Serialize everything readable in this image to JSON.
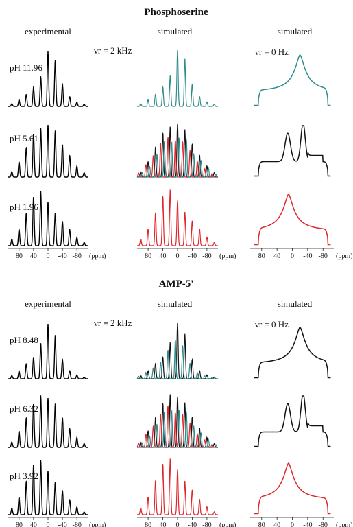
{
  "figure": {
    "colors": {
      "experimental": "#000000",
      "teal": "#2e8b8b",
      "red": "#e0242a",
      "black_sim": "#111111"
    },
    "x_ticks": [
      "80",
      "40",
      "0",
      "-40",
      "-80"
    ],
    "x_unit": "(ppm)",
    "panels": [
      {
        "title": "Phosphoserine",
        "headers": [
          "experimental",
          "simulated",
          "simulated"
        ],
        "spin_labels": [
          "νr = 2 kHz",
          "νr = 0 Hz"
        ],
        "rows": [
          {
            "ph": "pH 11.96",
            "sim_colors": [
              "teal"
            ],
            "static_color": "teal"
          },
          {
            "ph": "pH 5.61",
            "sim_colors": [
              "black_sim",
              "red",
              "teal"
            ],
            "static_color": "black_sim"
          },
          {
            "ph": "pH 1.96",
            "sim_colors": [
              "red"
            ],
            "static_color": "red"
          }
        ]
      },
      {
        "title": "AMP-5'",
        "headers": [
          "experimental",
          "simulated",
          "simulated"
        ],
        "spin_labels": [
          "νr = 2 kHz",
          "νr = 0 Hz"
        ],
        "rows": [
          {
            "ph": "pH 8.48",
            "sim_colors": [
              "black_sim",
              "teal"
            ],
            "static_color": "black_sim"
          },
          {
            "ph": "pH 6.32",
            "sim_colors": [
              "black_sim",
              "red",
              "teal"
            ],
            "static_color": "black_sim"
          },
          {
            "ph": "pH 3.92",
            "sim_colors": [
              "red"
            ],
            "static_color": "red"
          }
        ]
      }
    ]
  },
  "chart_data": [
    {
      "type": "line",
      "title": "Phosphoserine",
      "xlabel": "(ppm)",
      "x_ticks": [
        80,
        40,
        0,
        -40,
        -80
      ],
      "xlim": [
        110,
        -110
      ],
      "columns": [
        "experimental",
        "simulated (νr = 2 kHz)",
        "simulated (νr = 0 Hz)"
      ],
      "series": [
        {
          "name": "pH 11.96",
          "sideband_positions_ppm": [
            100,
            80,
            60,
            40,
            20,
            0,
            -20,
            -40,
            -60,
            -80,
            -100
          ],
          "relative_heights": [
            0.05,
            0.12,
            0.22,
            0.35,
            0.55,
            1.0,
            0.85,
            0.4,
            0.18,
            0.08,
            0.04
          ],
          "static_powder_peak_ppm": -20
        },
        {
          "name": "pH 5.61",
          "sideband_positions_ppm": [
            100,
            80,
            60,
            40,
            20,
            0,
            -20,
            -40,
            -60,
            -80,
            -100
          ],
          "relative_heights": [
            0.1,
            0.28,
            0.55,
            0.8,
            0.9,
            0.95,
            0.85,
            0.6,
            0.4,
            0.2,
            0.08
          ],
          "static_powder_peak_ppm": -25
        },
        {
          "name": "pH 1.96",
          "sideband_positions_ppm": [
            100,
            80,
            60,
            40,
            20,
            0,
            -20,
            -40,
            -60,
            -80,
            -100
          ],
          "relative_heights": [
            0.12,
            0.3,
            0.6,
            0.9,
            1.0,
            0.8,
            0.6,
            0.45,
            0.3,
            0.15,
            0.06
          ],
          "static_powder_peak_ppm": 10
        }
      ]
    },
    {
      "type": "line",
      "title": "AMP-5'",
      "xlabel": "(ppm)",
      "x_ticks": [
        80,
        40,
        0,
        -40,
        -80
      ],
      "xlim": [
        110,
        -110
      ],
      "columns": [
        "experimental",
        "simulated (νr = 2 kHz)",
        "simulated (νr = 0 Hz)"
      ],
      "series": [
        {
          "name": "pH 8.48",
          "sideband_positions_ppm": [
            100,
            80,
            60,
            40,
            20,
            0,
            -20,
            -40,
            -60,
            -80,
            -100
          ],
          "relative_heights": [
            0.06,
            0.14,
            0.28,
            0.4,
            0.65,
            1.0,
            0.8,
            0.35,
            0.15,
            0.07,
            0.03
          ],
          "static_powder_peak_ppm": -20
        },
        {
          "name": "pH 6.32",
          "sideband_positions_ppm": [
            100,
            80,
            60,
            40,
            20,
            0,
            -20,
            -40,
            -60,
            -80,
            -100
          ],
          "relative_heights": [
            0.1,
            0.3,
            0.55,
            0.8,
            0.95,
            0.9,
            0.8,
            0.55,
            0.35,
            0.18,
            0.07
          ],
          "static_powder_peak_ppm": -25
        },
        {
          "name": "pH 3.92",
          "sideband_positions_ppm": [
            100,
            80,
            60,
            40,
            20,
            0,
            -20,
            -40,
            -60,
            -80,
            -100
          ],
          "relative_heights": [
            0.12,
            0.32,
            0.62,
            0.92,
            1.0,
            0.8,
            0.6,
            0.45,
            0.28,
            0.14,
            0.05
          ],
          "static_powder_peak_ppm": 10
        }
      ]
    }
  ]
}
